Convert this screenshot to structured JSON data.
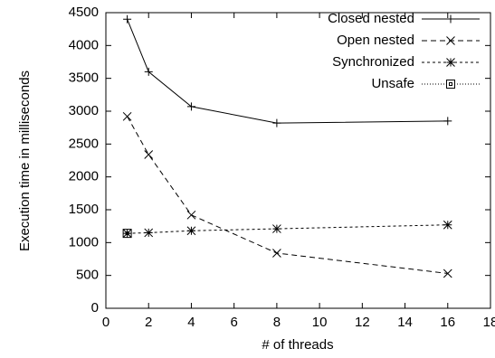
{
  "chart_data": {
    "type": "line",
    "xlabel": "# of threads",
    "ylabel": "Execution time in milliseconds",
    "x": [
      1,
      2,
      4,
      8,
      16
    ],
    "series": [
      {
        "name": "Closed nested",
        "color": "#000000",
        "dash": "none",
        "marker": "plus",
        "values": [
          4400,
          3600,
          3070,
          2820,
          2850
        ]
      },
      {
        "name": "Open nested",
        "color": "#000000",
        "dash": "6,4",
        "marker": "cross",
        "values": [
          2920,
          2340,
          1420,
          840,
          530
        ]
      },
      {
        "name": "Synchronized",
        "color": "#000000",
        "dash": "3,3",
        "marker": "star",
        "values": [
          1140,
          1150,
          1180,
          1210,
          1270
        ]
      },
      {
        "name": "Unsafe",
        "color": "#000000",
        "dash": "1,2",
        "marker": "box",
        "values": [
          1140,
          null,
          null,
          null,
          null
        ]
      }
    ],
    "xlim": [
      0,
      18
    ],
    "xticks": [
      0,
      2,
      4,
      6,
      8,
      10,
      12,
      14,
      16,
      18
    ],
    "ylim": [
      0,
      4500
    ],
    "yticks": [
      0,
      500,
      1000,
      1500,
      2000,
      2500,
      3000,
      3500,
      4000,
      4500
    ],
    "legend": "top-right",
    "grid": false
  }
}
